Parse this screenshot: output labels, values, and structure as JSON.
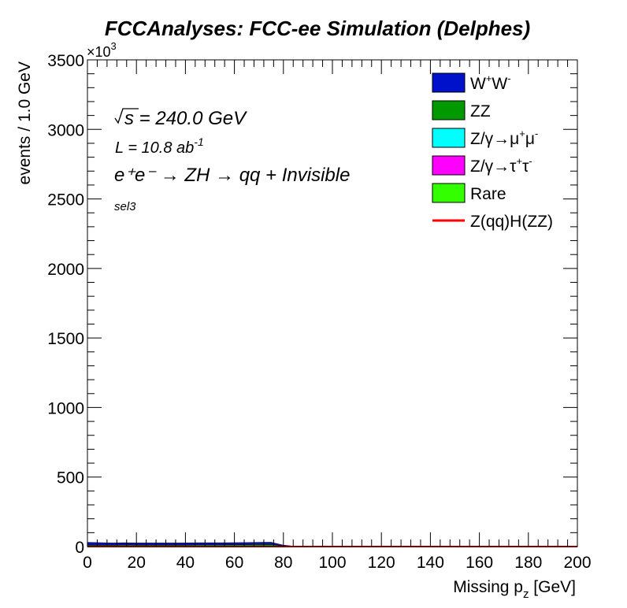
{
  "chart_data": {
    "type": "area",
    "title": "FCCAnalyses: FCC-ee Simulation (Delphes)",
    "xlabel_main": "Missing p",
    "xlabel_sub": "z",
    "xlabel_unit": " [GeV]",
    "ylabel": "events / 1.0 GeV",
    "y_exponent_label": "×10",
    "y_exponent_power": "3",
    "xlim": [
      0,
      200
    ],
    "ylim": [
      0,
      3500
    ],
    "x_ticks": [
      "0",
      "20",
      "40",
      "60",
      "80",
      "100",
      "120",
      "140",
      "160",
      "180",
      "200"
    ],
    "y_ticks": [
      "0",
      "500",
      "1000",
      "1500",
      "2000",
      "2500",
      "3000",
      "3500"
    ],
    "annotations": {
      "sqrt_s": "s = 240.0 GeV",
      "lumi_main": "L = 10.8 ab",
      "lumi_power": "-1",
      "process": "e⁺e⁻ → ZH → qq + Invisible",
      "selection": "sel3"
    },
    "legend_position": "top-right",
    "x": [
      0,
      5,
      10,
      15,
      20,
      25,
      30,
      35,
      40,
      45,
      50,
      55,
      60,
      65,
      70,
      75,
      80,
      85,
      90,
      95,
      100,
      150,
      200
    ],
    "series": [
      {
        "name": "Rare",
        "color": "#33ff00",
        "values": [
          0,
          0,
          0,
          0,
          0,
          0,
          0,
          0,
          0,
          0,
          0,
          0,
          0,
          0,
          0,
          0,
          0,
          0,
          0,
          0,
          0,
          0,
          0
        ]
      },
      {
        "name": "Z/γ→τ⁺τ⁻",
        "color": "#ff00ff",
        "values": [
          2,
          2,
          2,
          2,
          2,
          2,
          1,
          1,
          1,
          1,
          1,
          1,
          1,
          1,
          1,
          1,
          0,
          0,
          0,
          0,
          0,
          0,
          0
        ]
      },
      {
        "name": "Z/γ→μ⁺μ⁻",
        "color": "#00ffff",
        "values": [
          0,
          0,
          0,
          0,
          0,
          0,
          0,
          0,
          0,
          0,
          0,
          0,
          0,
          0,
          0,
          0,
          0,
          0,
          0,
          0,
          0,
          0,
          0
        ]
      },
      {
        "name": "ZZ",
        "color": "#009900",
        "values": [
          8,
          8,
          8,
          10,
          9,
          9,
          10,
          10,
          10,
          11,
          11,
          11,
          12,
          13,
          14,
          15,
          4,
          0,
          0,
          0,
          0,
          0,
          0
        ]
      },
      {
        "name": "W⁺W⁻",
        "color": "#0011cc",
        "values": [
          20,
          18,
          16,
          15,
          15,
          15,
          15,
          15,
          15,
          15,
          15,
          15,
          15,
          15,
          15,
          15,
          6,
          1,
          0,
          0,
          0,
          0,
          0
        ]
      },
      {
        "name": "Z(qq)H(ZZ)",
        "color": "#ff0000",
        "style": "line",
        "values": [
          0,
          0,
          0,
          0,
          0,
          0,
          0,
          0,
          0,
          0,
          0,
          0,
          0,
          0,
          0,
          0,
          0,
          0,
          0,
          0,
          0,
          0,
          0
        ]
      }
    ],
    "legend": [
      {
        "label": "W",
        "sup1": "+",
        "mid": "W",
        "sup2": "-",
        "color": "#0011cc",
        "kind": "box"
      },
      {
        "label": "ZZ",
        "color": "#009900",
        "kind": "box"
      },
      {
        "label": "Z/γ→μ",
        "sup1": "+",
        "mid": "μ",
        "sup2": "-",
        "color": "#00ffff",
        "kind": "box"
      },
      {
        "label": "Z/γ→τ",
        "sup1": "+",
        "mid": "τ",
        "sup2": "-",
        "color": "#ff00ff",
        "kind": "box"
      },
      {
        "label": "Rare",
        "color": "#33ff00",
        "kind": "box"
      },
      {
        "label": "Z(qq)H(ZZ)",
        "color": "#ff0000",
        "kind": "line"
      }
    ]
  }
}
